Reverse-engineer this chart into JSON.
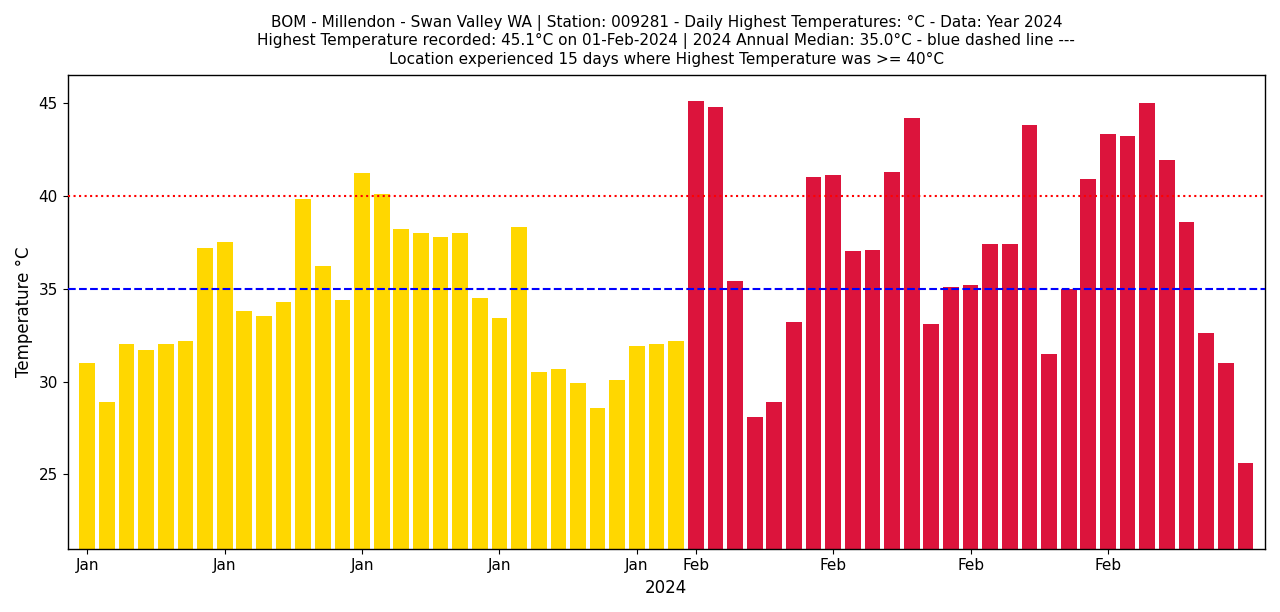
{
  "title_line1": "BOM - Millendon - Swan Valley WA | Station: 009281 - Daily Highest Temperatures: °C - Data: Year 2024",
  "title_line2": "Highest Temperature recorded: 45.1°C on 01-Feb-2024 | 2024 Annual Median: 35.0°C - blue dashed line ---",
  "title_line3": "Location experienced 15 days where Highest Temperature was >= 40°C",
  "xlabel": "2024",
  "ylabel": "Temperature °C",
  "jan_color": "gold",
  "feb_color": "crimson",
  "median_color": "blue",
  "heatwave_color": "red",
  "median_value": 35.0,
  "heatwave_threshold": 40.0,
  "ylim_min": 21,
  "ylim_max": 46.5,
  "jan_temps": [
    31.0,
    28.9,
    32.0,
    31.7,
    32.0,
    32.2,
    37.2,
    37.5,
    33.8,
    33.5,
    34.3,
    39.8,
    36.2,
    34.4,
    41.2,
    40.1,
    38.2,
    38.0,
    37.8,
    38.0,
    34.5,
    33.4,
    38.3,
    30.5,
    30.7,
    29.9,
    28.6,
    30.1,
    31.9,
    32.0,
    32.2
  ],
  "feb_temps": [
    45.1,
    44.8,
    35.4,
    28.1,
    28.9,
    33.2,
    41.0,
    41.1,
    37.0,
    37.1,
    41.3,
    44.2,
    33.1,
    35.1,
    35.2,
    37.4,
    37.4,
    43.8,
    31.5,
    35.0,
    40.9,
    43.3,
    43.2,
    45.0,
    41.9,
    38.6,
    32.6,
    31.0,
    25.6
  ],
  "title_fontsize": 11,
  "axis_label_fontsize": 12,
  "tick_fontsize": 11
}
